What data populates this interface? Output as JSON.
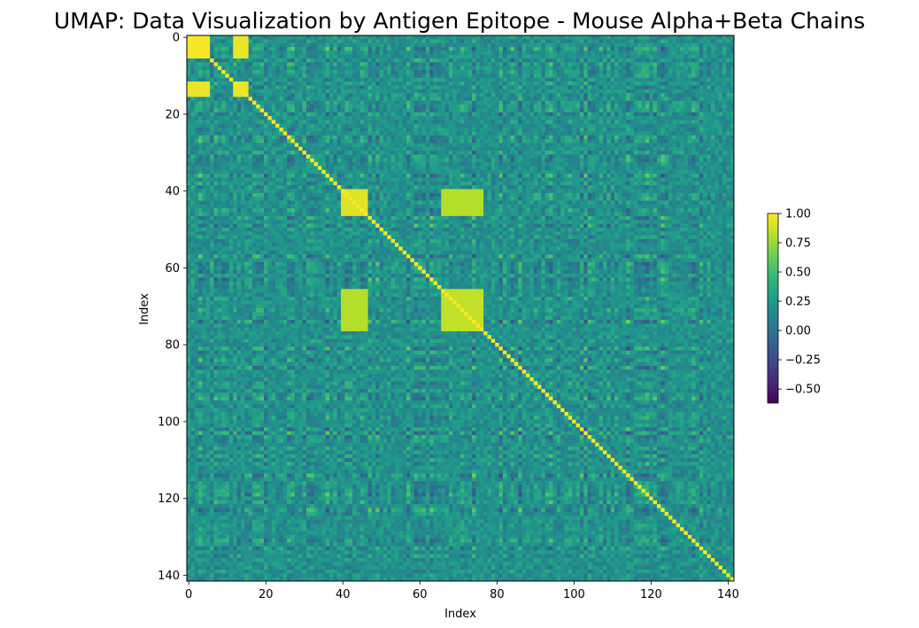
{
  "chart_data": {
    "type": "heatmap",
    "title": "UMAP: Data Visualization by Antigen Epitope - Mouse Alpha+Beta Chains",
    "xlabel": "Index",
    "ylabel": "Index",
    "n_rows": 142,
    "n_cols": 142,
    "xlim": [
      0,
      142
    ],
    "ylim": [
      142,
      0
    ],
    "x_ticks": [
      0,
      20,
      40,
      60,
      80,
      100,
      120,
      140
    ],
    "y_ticks": [
      0,
      20,
      40,
      60,
      80,
      100,
      120,
      140
    ],
    "colormap": "viridis",
    "color_range": [
      -0.62,
      1.0
    ],
    "colorbar_ticks": [
      1.0,
      0.75,
      0.5,
      0.25,
      0.0,
      -0.25,
      -0.5
    ],
    "colorbar_tick_labels": [
      "1.00",
      "0.75",
      "0.50",
      "0.25",
      "0.00",
      "−0.25",
      "−0.50"
    ],
    "diagonal_value": 1.0,
    "high_correlation_blocks": [
      {
        "rows": [
          0,
          5
        ],
        "cols": [
          0,
          5
        ],
        "value": 0.98
      },
      {
        "rows": [
          0,
          5
        ],
        "cols": [
          12,
          15
        ],
        "value": 0.95
      },
      {
        "rows": [
          12,
          15
        ],
        "cols": [
          0,
          5
        ],
        "value": 0.95
      },
      {
        "rows": [
          12,
          15
        ],
        "cols": [
          12,
          15
        ],
        "value": 0.95
      },
      {
        "rows": [
          40,
          46
        ],
        "cols": [
          40,
          46
        ],
        "value": 0.92
      },
      {
        "rows": [
          66,
          76
        ],
        "cols": [
          66,
          76
        ],
        "value": 0.85
      },
      {
        "rows": [
          66,
          76
        ],
        "cols": [
          40,
          46
        ],
        "value": 0.82
      },
      {
        "rows": [
          40,
          46
        ],
        "cols": [
          66,
          76
        ],
        "value": 0.82
      }
    ],
    "grid": false
  },
  "colors": {
    "viridis_stops": [
      "#440154",
      "#482878",
      "#3e4989",
      "#31688e",
      "#26828e",
      "#1f9e89",
      "#35b779",
      "#6ece58",
      "#b5de2b",
      "#fde725"
    ]
  }
}
